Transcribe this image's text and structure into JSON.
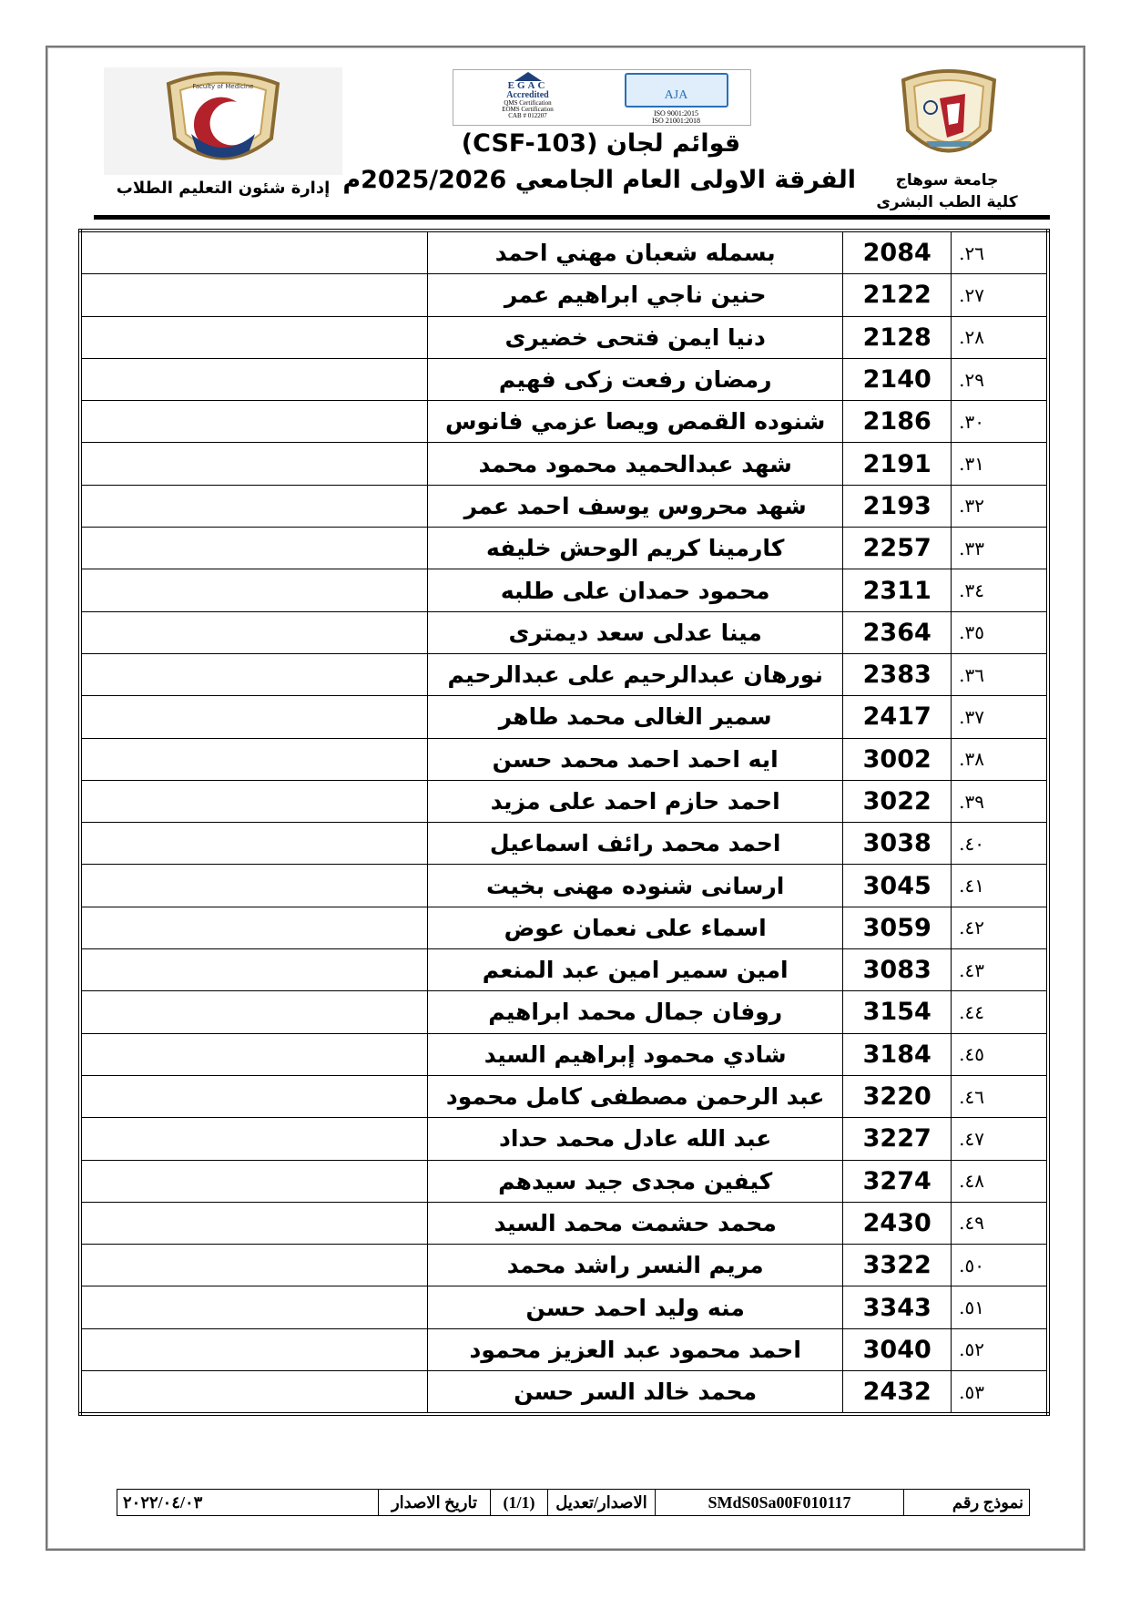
{
  "header": {
    "university_name": "جامعة سوهاج",
    "faculty_name": "كلية الطب البشرى",
    "title_line1": "قوائم لجان (CSF-103)",
    "title_line2": "الفرقة الاولى العام الجامعي 2025/2026م",
    "department": "إدارة شئون التعليم الطلاب",
    "cert_logo": {
      "left_text": [
        "EGAC",
        "Accredited",
        "QMS Certification",
        "EOMS Certification",
        "CAB # 012207"
      ],
      "right_text": [
        "AJA",
        "ISO 9001:2015",
        "ISO 21001:2018"
      ]
    },
    "faculty_logo_text": [
      "Faculty of Medicine",
      "2000",
      "1992"
    ]
  },
  "rows": [
    {
      "serial": "٢٦.",
      "code": "2084",
      "name": "بسمله شعبان مهني احمد"
    },
    {
      "serial": "٢٧.",
      "code": "2122",
      "name": "حنين ناجي ابراهيم عمر"
    },
    {
      "serial": "٢٨.",
      "code": "2128",
      "name": "دنيا ايمن فتحى خضيرى"
    },
    {
      "serial": "٢٩.",
      "code": "2140",
      "name": "رمضان رفعت زكى فهيم"
    },
    {
      "serial": "٣٠.",
      "code": "2186",
      "name": "شنوده القمص ويصا عزمي فانوس"
    },
    {
      "serial": "٣١.",
      "code": "2191",
      "name": "شهد عبدالحميد محمود محمد"
    },
    {
      "serial": "٣٢.",
      "code": "2193",
      "name": "شهد محروس يوسف احمد عمر"
    },
    {
      "serial": "٣٣.",
      "code": "2257",
      "name": "كارمينا كريم الوحش خليفه"
    },
    {
      "serial": "٣٤.",
      "code": "2311",
      "name": "محمود حمدان على طلبه"
    },
    {
      "serial": "٣٥.",
      "code": "2364",
      "name": "مينا عدلى سعد ديمترى"
    },
    {
      "serial": "٣٦.",
      "code": "2383",
      "name": "نورهان عبدالرحيم  على عبدالرحيم"
    },
    {
      "serial": "٣٧.",
      "code": "2417",
      "name": "سمير الغالى محمد طاهر"
    },
    {
      "serial": "٣٨.",
      "code": "3002",
      "name": "ايه احمد احمد محمد حسن"
    },
    {
      "serial": "٣٩.",
      "code": "3022",
      "name": "احمد حازم احمد على مزيد"
    },
    {
      "serial": "٤٠.",
      "code": "3038",
      "name": "احمد محمد رائف اسماعيل"
    },
    {
      "serial": "٤١.",
      "code": "3045",
      "name": "ارسانى شنوده مهنى بخيت"
    },
    {
      "serial": "٤٢.",
      "code": "3059",
      "name": "اسماء على نعمان عوض"
    },
    {
      "serial": "٤٣.",
      "code": "3083",
      "name": "امين سمير امين عبد المنعم"
    },
    {
      "serial": "٤٤.",
      "code": "3154",
      "name": "روفان جمال محمد ابراهيم"
    },
    {
      "serial": "٤٥.",
      "code": "3184",
      "name": "شادي محمود إبراهيم السيد"
    },
    {
      "serial": "٤٦.",
      "code": "3220",
      "name": "عبد الرحمن مصطفى كامل محمود"
    },
    {
      "serial": "٤٧.",
      "code": "3227",
      "name": "عبد الله عادل محمد حداد"
    },
    {
      "serial": "٤٨.",
      "code": "3274",
      "name": "كيفين مجدى جيد سيدهم"
    },
    {
      "serial": "٤٩.",
      "code": "2430",
      "name": "محمد حشمت محمد السيد"
    },
    {
      "serial": "٥٠.",
      "code": "3322",
      "name": "مريم النسر راشد محمد"
    },
    {
      "serial": "٥١.",
      "code": "3343",
      "name": "منه وليد احمد حسن"
    },
    {
      "serial": "٥٢.",
      "code": "3040",
      "name": "احمد محمود عبد العزيز محمود"
    },
    {
      "serial": "٥٣.",
      "code": "2432",
      "name": "محمد خالد السر حسن"
    }
  ],
  "footer": {
    "form_number_label": "نموذج رقم",
    "form_number": "SMdS0Sa00F010117",
    "revision_label": "الاصدار/تعديل",
    "revision": "(1/1)",
    "issue_date_label": "تاريخ الاصدار",
    "issue_date": "٢٠٢٢/٠٤/٠٣"
  },
  "colors": {
    "logo_gold": "#c9a25a",
    "logo_red": "#b3222a",
    "logo_blue": "#1f3f7a",
    "cert_blue": "#2a6fb8"
  }
}
